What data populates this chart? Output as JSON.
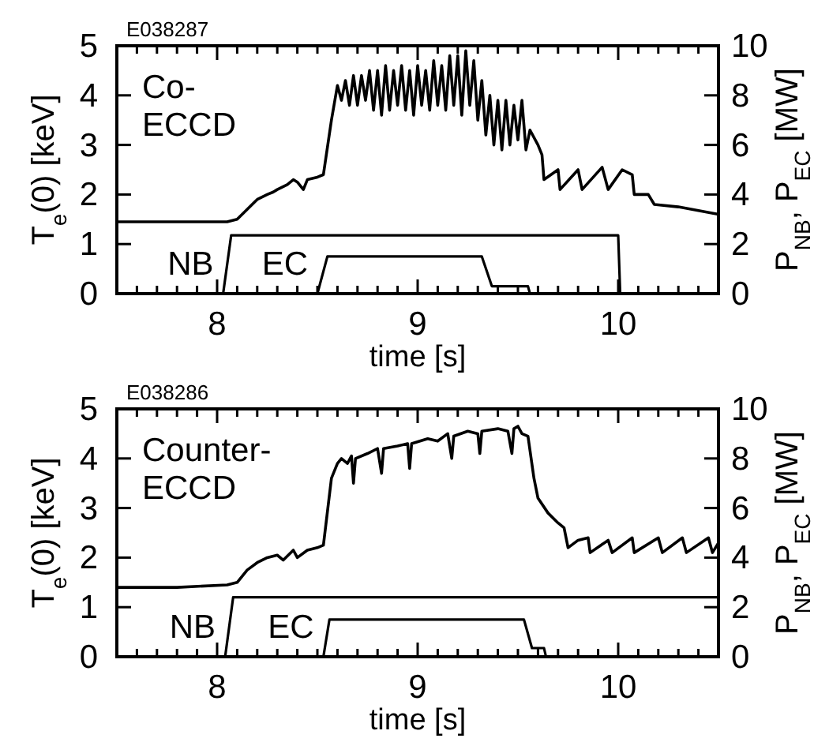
{
  "chart_data": [
    {
      "type": "line",
      "title": "E038287",
      "xlabel": "time [s]",
      "ylabel": "T$_{e}$(0) [keV]",
      "y2label": "P$_{NB}$, P$_{EC}$ [MW]",
      "annotations": [
        "Co-ECCD"
      ],
      "xlim": [
        7.5,
        10.5
      ],
      "ylim": [
        0,
        5
      ],
      "y2lim": [
        0,
        10
      ],
      "xticks": [
        {
          "value": 7.6,
          "label": null
        },
        {
          "value": 7.7,
          "label": null
        },
        {
          "value": 7.8,
          "label": null
        },
        {
          "value": 7.9,
          "label": null
        },
        8,
        {
          "value": 8.1,
          "label": null
        },
        {
          "value": 8.2,
          "label": null
        },
        {
          "value": 8.3,
          "label": null
        },
        {
          "value": 8.4,
          "label": null
        },
        {
          "value": 8.5,
          "label": null
        },
        {
          "value": 8.6,
          "label": null
        },
        {
          "value": 8.7,
          "label": null
        },
        {
          "value": 8.8,
          "label": null
        },
        {
          "value": 8.9,
          "label": null
        },
        9,
        {
          "value": 9.1,
          "label": null
        },
        {
          "value": 9.2,
          "label": null
        },
        {
          "value": 9.3,
          "label": null
        },
        {
          "value": 9.4,
          "label": null
        },
        {
          "value": 9.5,
          "label": null
        },
        {
          "value": 9.6,
          "label": null
        },
        {
          "value": 9.7,
          "label": null
        },
        {
          "value": 9.8,
          "label": null
        },
        {
          "value": 9.9,
          "label": null
        },
        10,
        {
          "value": 10.1,
          "label": null
        },
        {
          "value": 10.2,
          "label": null
        },
        {
          "value": 10.3,
          "label": null
        },
        {
          "value": 10.4,
          "label": null
        }
      ],
      "yticks": [
        0,
        1,
        2,
        3,
        4,
        5
      ],
      "y2ticks": [
        0,
        2,
        4,
        6,
        8,
        10
      ],
      "series": [
        {
          "color": "#000000",
          "x": [
            7.5,
            7.8,
            8.05,
            8.1,
            8.15,
            8.2,
            8.25,
            8.28,
            8.3,
            8.35,
            8.38,
            8.4,
            8.43,
            8.45,
            8.5,
            8.53,
            8.57,
            8.6,
            8.62,
            8.64,
            8.66,
            8.68,
            8.7,
            8.72,
            8.74,
            8.76,
            8.78,
            8.8,
            8.82,
            8.84,
            8.86,
            8.88,
            8.9,
            8.92,
            8.94,
            8.96,
            8.98,
            9.0,
            9.02,
            9.04,
            9.06,
            9.08,
            9.1,
            9.12,
            9.14,
            9.16,
            9.18,
            9.2,
            9.22,
            9.24,
            9.26,
            9.28,
            9.3,
            9.32,
            9.34,
            9.36,
            9.38,
            9.4,
            9.42,
            9.44,
            9.46,
            9.48,
            9.5,
            9.52,
            9.54,
            9.56,
            9.6,
            9.62,
            9.63,
            9.7,
            9.71,
            9.8,
            9.82,
            9.92,
            9.95,
            10.02,
            10.07,
            10.08,
            10.15,
            10.18,
            10.3,
            10.5
          ],
          "values": [
            1.45,
            1.45,
            1.45,
            1.5,
            1.7,
            1.9,
            2.0,
            2.05,
            2.1,
            2.2,
            2.3,
            2.25,
            2.1,
            2.3,
            2.35,
            2.4,
            3.5,
            4.2,
            3.9,
            4.3,
            3.8,
            4.4,
            3.8,
            4.4,
            3.9,
            4.5,
            3.7,
            4.5,
            3.6,
            4.6,
            3.7,
            4.5,
            3.8,
            4.6,
            3.7,
            4.5,
            3.6,
            4.6,
            3.8,
            4.5,
            3.7,
            4.7,
            3.8,
            4.6,
            3.7,
            4.8,
            3.8,
            4.8,
            3.6,
            4.9,
            3.8,
            4.7,
            3.5,
            4.3,
            3.2,
            4.0,
            3.0,
            3.9,
            2.9,
            3.9,
            3.0,
            3.8,
            3.1,
            3.9,
            2.9,
            3.3,
            3.0,
            2.8,
            2.3,
            2.5,
            2.1,
            2.5,
            2.1,
            2.55,
            2.1,
            2.5,
            2.4,
            2.0,
            2.0,
            1.8,
            1.75,
            1.6
          ]
        },
        {
          "name": "NB",
          "color": "#000000",
          "axis": "y2",
          "x": [
            8.03,
            8.07,
            10.0,
            10.01
          ],
          "values": [
            0,
            2.35,
            2.35,
            0
          ]
        },
        {
          "name": "EC",
          "color": "#000000",
          "axis": "y2",
          "x": [
            8.5,
            8.55,
            9.32,
            9.37,
            9.55,
            9.56
          ],
          "values": [
            0,
            1.5,
            1.5,
            0.3,
            0.3,
            0
          ]
        }
      ]
    },
    {
      "type": "line",
      "title": "E038286",
      "xlabel": "time [s]",
      "ylabel": "T$_{e}$(0) [keV]",
      "y2label": "P$_{NB}$, P$_{EC}$ [MW]",
      "annotations": [
        "Counter-ECCD"
      ],
      "xlim": [
        7.5,
        10.5
      ],
      "ylim": [
        0,
        5
      ],
      "y2lim": [
        0,
        10
      ],
      "xticks": [
        {
          "value": 7.6,
          "label": null
        },
        {
          "value": 7.7,
          "label": null
        },
        {
          "value": 7.8,
          "label": null
        },
        {
          "value": 7.9,
          "label": null
        },
        8,
        {
          "value": 8.1,
          "label": null
        },
        {
          "value": 8.2,
          "label": null
        },
        {
          "value": 8.3,
          "label": null
        },
        {
          "value": 8.4,
          "label": null
        },
        {
          "value": 8.5,
          "label": null
        },
        {
          "value": 8.6,
          "label": null
        },
        {
          "value": 8.7,
          "label": null
        },
        {
          "value": 8.8,
          "label": null
        },
        {
          "value": 8.9,
          "label": null
        },
        9,
        {
          "value": 9.1,
          "label": null
        },
        {
          "value": 9.2,
          "label": null
        },
        {
          "value": 9.3,
          "label": null
        },
        {
          "value": 9.4,
          "label": null
        },
        {
          "value": 9.5,
          "label": null
        },
        {
          "value": 9.6,
          "label": null
        },
        {
          "value": 9.7,
          "label": null
        },
        {
          "value": 9.8,
          "label": null
        },
        {
          "value": 9.9,
          "label": null
        },
        10,
        {
          "value": 10.1,
          "label": null
        },
        {
          "value": 10.2,
          "label": null
        },
        {
          "value": 10.3,
          "label": null
        },
        {
          "value": 10.4,
          "label": null
        }
      ],
      "yticks": [
        0,
        1,
        2,
        3,
        4,
        5
      ],
      "y2ticks": [
        0,
        2,
        4,
        6,
        8,
        10
      ],
      "series": [
        {
          "color": "#000000",
          "x": [
            7.5,
            7.8,
            8.05,
            8.1,
            8.15,
            8.2,
            8.25,
            8.3,
            8.33,
            8.38,
            8.4,
            8.45,
            8.5,
            8.53,
            8.57,
            8.6,
            8.62,
            8.65,
            8.67,
            8.68,
            8.69,
            8.75,
            8.8,
            8.82,
            8.83,
            8.9,
            8.95,
            8.96,
            8.97,
            9.05,
            9.1,
            9.15,
            9.17,
            9.18,
            9.25,
            9.3,
            9.31,
            9.32,
            9.4,
            9.45,
            9.47,
            9.48,
            9.5,
            9.52,
            9.55,
            9.58,
            9.6,
            9.65,
            9.7,
            9.73,
            9.75,
            9.8,
            9.85,
            9.86,
            9.95,
            9.97,
            10.07,
            10.08,
            10.2,
            10.22,
            10.32,
            10.34,
            10.45,
            10.47,
            10.5
          ],
          "values": [
            1.4,
            1.4,
            1.45,
            1.5,
            1.75,
            1.9,
            2.0,
            2.05,
            1.95,
            2.15,
            2.0,
            2.15,
            2.2,
            2.25,
            3.6,
            3.9,
            4.0,
            3.9,
            4.05,
            3.5,
            4.0,
            4.1,
            4.2,
            3.7,
            4.2,
            4.25,
            4.3,
            3.8,
            4.3,
            4.4,
            4.35,
            4.5,
            4.0,
            4.45,
            4.55,
            4.5,
            4.1,
            4.55,
            4.6,
            4.55,
            4.1,
            4.6,
            4.65,
            4.5,
            4.45,
            3.6,
            3.2,
            2.9,
            2.7,
            2.6,
            2.2,
            2.35,
            2.4,
            2.1,
            2.35,
            2.1,
            2.4,
            2.1,
            2.4,
            2.1,
            2.4,
            2.1,
            2.4,
            2.1,
            2.3
          ]
        },
        {
          "name": "NB",
          "color": "#000000",
          "axis": "y2",
          "x": [
            8.04,
            8.08,
            10.5
          ],
          "values": [
            0,
            2.4,
            2.4
          ]
        },
        {
          "name": "EC",
          "color": "#000000",
          "axis": "y2",
          "x": [
            8.53,
            8.56,
            9.53,
            9.57,
            9.63,
            9.64
          ],
          "values": [
            0,
            1.5,
            1.5,
            0.35,
            0.35,
            0
          ]
        }
      ]
    }
  ]
}
